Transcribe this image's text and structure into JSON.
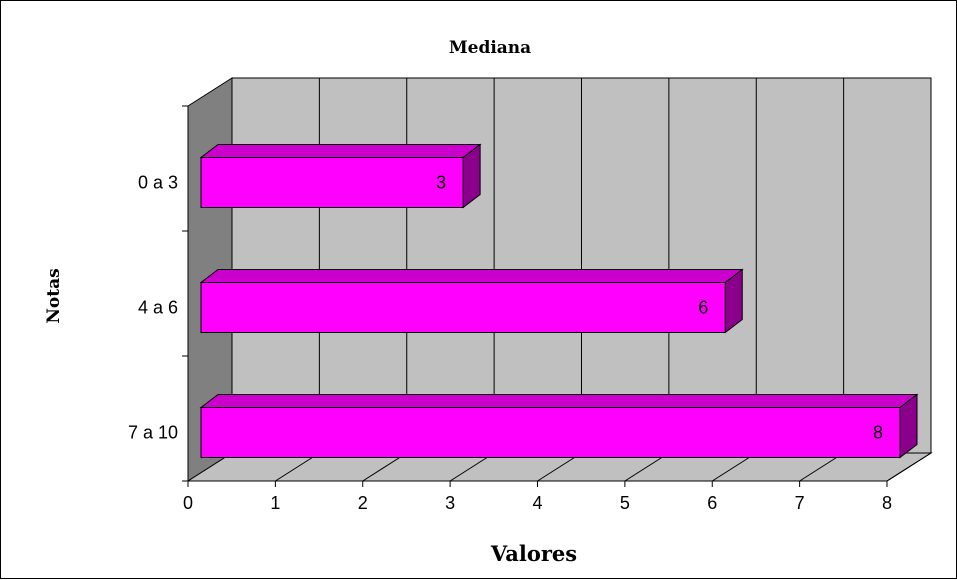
{
  "chart_data": {
    "type": "bar",
    "orientation": "horizontal",
    "three_d": true,
    "title": "Mediana",
    "xlabel": "Valores",
    "ylabel": "Notas",
    "categories": [
      "0 a 3",
      "4 a 6",
      "7 a 10"
    ],
    "values": [
      3,
      6,
      8
    ],
    "data_labels": [
      "3",
      "6",
      "8"
    ],
    "xlim": [
      0,
      8
    ],
    "xticks": [
      "0",
      "1",
      "2",
      "3",
      "4",
      "5",
      "6",
      "7",
      "8"
    ],
    "grid": "vertical",
    "legend": "none",
    "colors": {
      "bar_front": "#ff00ff",
      "bar_top": "#cc00cc",
      "bar_side": "#8b008b",
      "plot_wall": "#c0c0c0",
      "side_wall": "#808080",
      "floor": "#c0c0c0"
    }
  }
}
